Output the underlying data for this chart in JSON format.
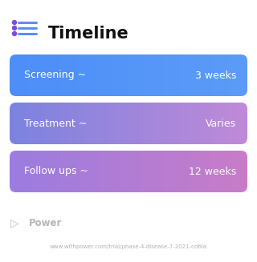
{
  "title": "Timeline",
  "title_fontsize": 15,
  "title_color": "#111111",
  "title_icon_dot_color": "#7c4ddd",
  "title_icon_line_color": "#5b8dfa",
  "background_color": "#ffffff",
  "rows": [
    {
      "label": "Screening ~",
      "value": "3 weeks",
      "color_left": "#4d8ef8",
      "color_right": "#5b9cf8"
    },
    {
      "label": "Treatment ~",
      "value": "Varies",
      "color_left": "#7b83e0",
      "color_right": "#c08ad8"
    },
    {
      "label": "Follow ups ~",
      "value": "12 weeks",
      "color_left": "#9b7de0",
      "color_right": "#c87cc8"
    }
  ],
  "row_text_color": "#ffffff",
  "row_label_fontsize": 9,
  "row_value_fontsize": 9,
  "footer_logo_text": "Power",
  "footer_url": "www.withpower.com/trial/phase-4-disease-7-2021-cd6la",
  "footer_color": "#b0b0b0",
  "footer_fontsize": 5.0
}
